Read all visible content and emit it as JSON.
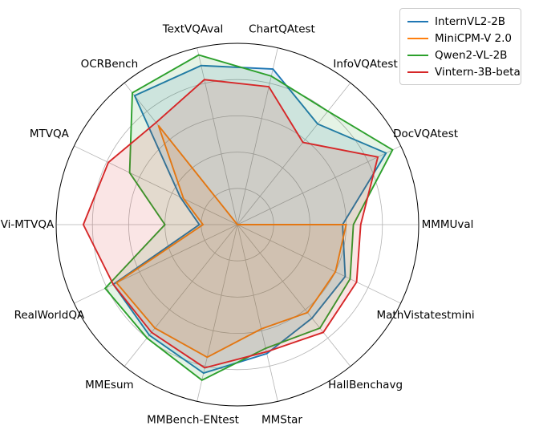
{
  "chart_data": {
    "type": "radar",
    "categories": [
      "MMMUval",
      "DocVQAtest",
      "InfoVQAtest",
      "ChartQAtest",
      "TextVQAval",
      "OCRBench",
      "MTVQA",
      "Vi-MTVQA",
      "RealWorldQA",
      "MMEsum",
      "MMBench-ENtest",
      "MMStar",
      "HallBenchavg",
      "MathVistatestmini"
    ],
    "angle_start_deg": 0,
    "direction": "counterclockwise",
    "rmin": 0,
    "rmax": 100,
    "grid_rings": [
      20,
      40,
      60,
      80,
      100
    ],
    "radial_tick_labels_shown": false,
    "grid": true,
    "legend_position": "upper right",
    "series": [
      {
        "name": "InternVL2-2B",
        "color": "#1f77b4",
        "values": [
          58,
          91,
          71,
          88,
          90,
          91,
          35,
          21,
          76,
          78,
          84,
          73,
          66,
          66
        ]
      },
      {
        "name": "MiniCPM-V 2.0",
        "color": "#ff7f0e",
        "values": [
          60,
          0,
          0,
          0,
          0,
          70,
          33,
          19,
          74,
          73,
          75,
          59,
          62,
          60
        ]
      },
      {
        "name": "Qwen2-VL-2B",
        "color": "#2ca02c",
        "values": [
          64,
          95,
          80,
          84,
          96,
          93,
          66,
          40,
          81,
          80,
          88,
          70,
          73,
          69
        ]
      },
      {
        "name": "Vintern-3B-beta",
        "color": "#d62728",
        "values": [
          68,
          86,
          58,
          78,
          82,
          72,
          79,
          85,
          76,
          76,
          81,
          72,
          76,
          73
        ]
      }
    ]
  },
  "style_colors": {
    "grid": "#b3b3b3",
    "outer_spine": "#000000",
    "background": "#ffffff",
    "fill_opacity": 0.12
  }
}
